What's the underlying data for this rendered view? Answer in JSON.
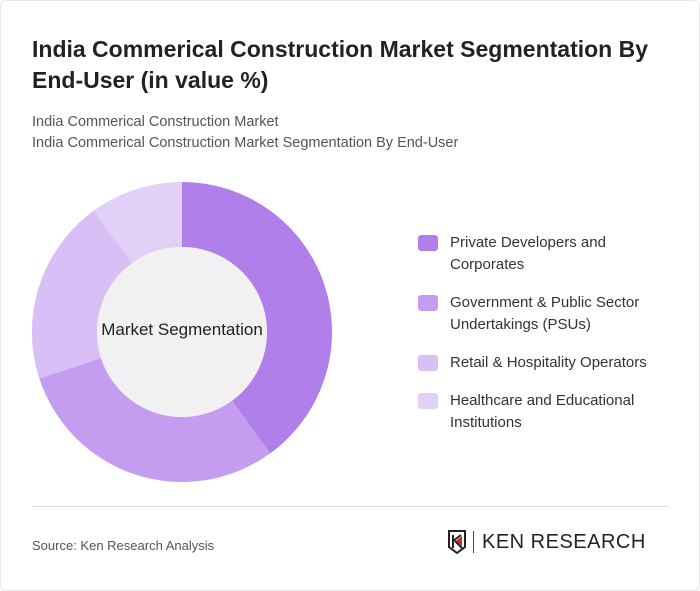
{
  "title": "India Commerical Construction Market Segmentation By End-User (in value %)",
  "subtitle1": "India Commerical Construction Market",
  "subtitle2": "India Commerical Construction Market Segmentation By End-User",
  "source": "Source: Ken Research Analysis",
  "logo_text": "KEN RESEARCH",
  "chart_data": {
    "type": "pie",
    "variant": "donut",
    "center_label": "Market Segmentation",
    "categories": [
      "Private Developers and Corporates",
      "Government & Public Sector Undertakings (PSUs)",
      "Retail & Hospitality Operators",
      "Healthcare and Educational Institutions"
    ],
    "values": [
      40,
      30,
      20,
      10
    ],
    "colors": [
      "#b07fea",
      "#c49df0",
      "#d8bff6",
      "#e3d0f7"
    ],
    "legend_position": "right"
  }
}
